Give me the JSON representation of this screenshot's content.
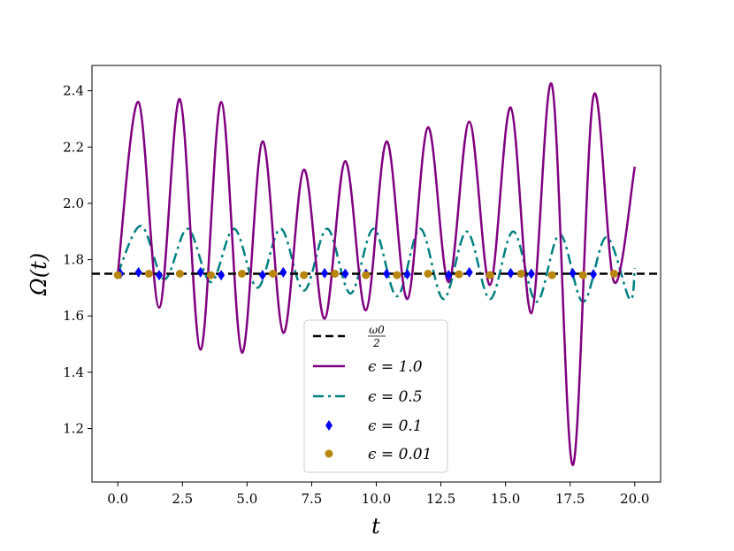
{
  "chart_data": {
    "type": "line",
    "xlabel": "t",
    "ylabel": "Ω(t)",
    "xlim": [
      -1.0,
      21.0
    ],
    "ylim": [
      1.01,
      2.49
    ],
    "xticks": [
      "0.0",
      "2.5",
      "5.0",
      "7.5",
      "10.0",
      "12.5",
      "15.0",
      "17.5",
      "20.0"
    ],
    "xtick_values": [
      0,
      2.5,
      5,
      7.5,
      10,
      12.5,
      15,
      17.5,
      20
    ],
    "yticks": [
      "1.2",
      "1.4",
      "1.6",
      "1.8",
      "2.0",
      "2.2",
      "2.4"
    ],
    "ytick_values": [
      1.2,
      1.4,
      1.6,
      1.8,
      2.0,
      2.2,
      2.4
    ],
    "grid": false,
    "legend_position": "lower-center",
    "series": [
      {
        "name": "ω0/2",
        "label_num": "ω0",
        "label_den": "2",
        "style": "dashed",
        "color": "#000000",
        "x": [
          -1,
          21
        ],
        "y": [
          1.75,
          1.75
        ]
      },
      {
        "name": "ϵ = 1.0",
        "style": "solid",
        "color": "#800080",
        "x": [
          0,
          0.8,
          1.6,
          2.4,
          3.2,
          4.0,
          4.8,
          5.6,
          6.4,
          7.2,
          8.0,
          8.8,
          9.6,
          10.4,
          11.2,
          12.0,
          12.8,
          13.6,
          14.4,
          15.2,
          16.0,
          16.8,
          17.6,
          18.4,
          19.2,
          20.0
        ],
        "y": [
          1.75,
          2.36,
          1.63,
          2.37,
          1.48,
          2.36,
          1.47,
          2.22,
          1.54,
          2.12,
          1.59,
          2.15,
          1.62,
          2.22,
          1.66,
          2.27,
          1.72,
          2.29,
          1.71,
          2.34,
          1.61,
          2.42,
          1.07,
          2.38,
          1.72,
          2.13
        ]
      },
      {
        "name": "ϵ = 0.5",
        "style": "dashdot",
        "color": "#008080",
        "x": [
          0,
          0.9,
          1.8,
          2.7,
          3.6,
          4.5,
          5.4,
          6.3,
          7.2,
          8.1,
          9.0,
          9.9,
          10.8,
          11.7,
          12.6,
          13.5,
          14.4,
          15.3,
          16.2,
          17.1,
          18.0,
          18.9,
          19.8,
          20.0
        ],
        "y": [
          1.75,
          1.92,
          1.73,
          1.91,
          1.72,
          1.91,
          1.7,
          1.91,
          1.69,
          1.91,
          1.68,
          1.91,
          1.67,
          1.91,
          1.66,
          1.9,
          1.66,
          1.9,
          1.65,
          1.89,
          1.65,
          1.88,
          1.66,
          1.77
        ]
      },
      {
        "name": "ϵ = 0.1",
        "style": "markers",
        "marker": "diamond",
        "color": "#0000ff",
        "x": [
          0.1,
          0.8,
          1.6,
          3.2,
          4.0,
          5.6,
          6.4,
          8.0,
          8.8,
          9.6,
          10.4,
          11.2,
          12.8,
          13.6,
          15.2,
          16.0,
          17.6,
          18.4
        ],
        "y": [
          1.75,
          1.755,
          1.745,
          1.755,
          1.745,
          1.745,
          1.755,
          1.752,
          1.75,
          1.75,
          1.75,
          1.748,
          1.745,
          1.755,
          1.752,
          1.75,
          1.752,
          1.748
        ]
      },
      {
        "name": "ϵ = 0.01",
        "style": "markers",
        "marker": "circle",
        "color": "#b8860b",
        "x": [
          0.0,
          1.2,
          2.4,
          3.6,
          4.8,
          6.0,
          7.2,
          8.4,
          9.6,
          10.8,
          12.0,
          13.2,
          14.4,
          15.6,
          16.8,
          18.0,
          19.2
        ],
        "y": [
          1.745,
          1.75,
          1.75,
          1.745,
          1.75,
          1.75,
          1.745,
          1.75,
          1.745,
          1.745,
          1.75,
          1.748,
          1.745,
          1.75,
          1.745,
          1.745,
          1.75
        ]
      }
    ]
  }
}
